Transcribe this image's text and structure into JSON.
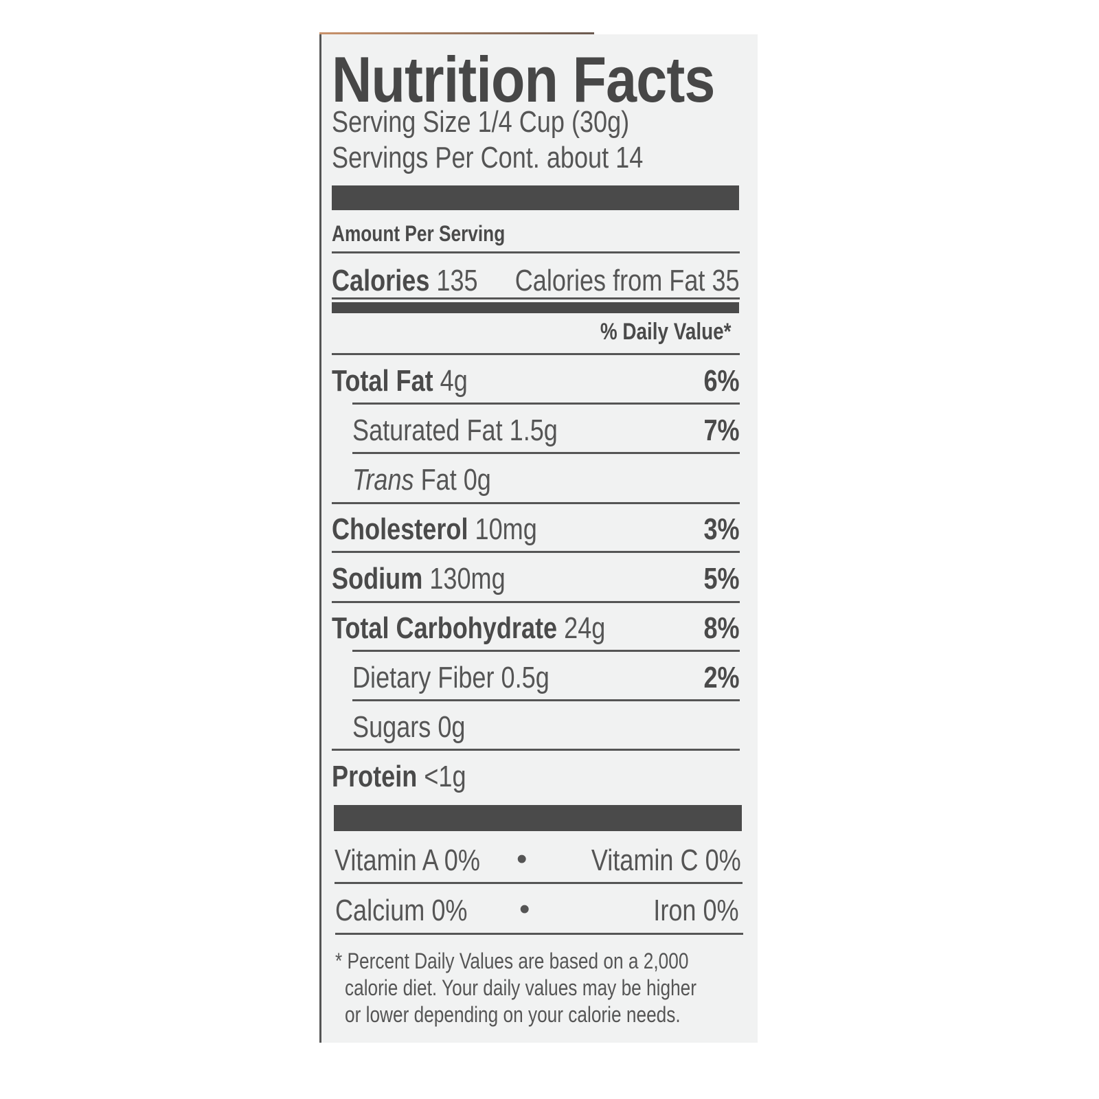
{
  "label": {
    "title": "Nutrition Facts",
    "serving_size": "Serving Size 1/4 Cup (30g)",
    "servings_per_container": "Servings Per Cont. about 14",
    "amount_per_serving": "Amount Per Serving",
    "calories_label": "Calories",
    "calories_value": "135",
    "calories_from_fat": "Calories from Fat 35",
    "daily_value_header": "% Daily Value*",
    "nutrients": [
      {
        "name": "Total Fat",
        "amount": "4g",
        "dv": "6%"
      },
      {
        "name": "Saturated Fat",
        "amount": "1.5g",
        "dv": "7%"
      },
      {
        "name": "Trans",
        "amount": "Fat 0g",
        "dv": ""
      },
      {
        "name": "Cholesterol",
        "amount": "10mg",
        "dv": "3%"
      },
      {
        "name": "Sodium",
        "amount": "130mg",
        "dv": "5%"
      },
      {
        "name": "Total Carbohydrate",
        "amount": "24g",
        "dv": "8%"
      },
      {
        "name": "Dietary Fiber",
        "amount": "0.5g",
        "dv": "2%"
      },
      {
        "name": "Sugars",
        "amount": "0g",
        "dv": ""
      },
      {
        "name": "Protein",
        "amount": "<1g",
        "dv": ""
      }
    ],
    "vitamins": [
      {
        "left": "Vitamin A 0%",
        "right": "Vitamin C 0%"
      },
      {
        "left": "Calcium 0%",
        "right": "Iron 0%"
      }
    ],
    "bullet": "•",
    "footnote": [
      "* Percent Daily Values are based on a 2,000",
      "calorie diet. Your daily values may be higher",
      "or lower depending on your calorie needs."
    ]
  }
}
